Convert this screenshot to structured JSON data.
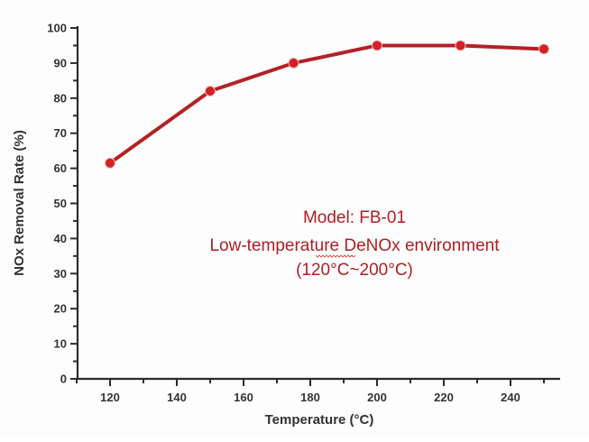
{
  "chart_data": {
    "type": "line",
    "title": "",
    "xlabel": "Temperature (°C)",
    "ylabel": "NOx Removal Rate (%)",
    "xlim": [
      110,
      254
    ],
    "ylim": [
      0,
      100
    ],
    "x_ticks": [
      120,
      140,
      160,
      180,
      200,
      220,
      240
    ],
    "x_minor_ticks": [
      110,
      130,
      150,
      170,
      190,
      210,
      230,
      250
    ],
    "y_ticks": [
      0,
      10,
      20,
      30,
      40,
      50,
      60,
      70,
      80,
      90,
      100
    ],
    "grid": false,
    "legend": null,
    "series": [
      {
        "name": "FB-01",
        "color": "#b22226",
        "marker_color": "#d42027",
        "x": [
          120,
          150,
          175,
          200,
          225,
          250
        ],
        "values": [
          61.5,
          82,
          90,
          95,
          95,
          94
        ]
      }
    ],
    "annotations": [
      "Model: FB-01",
      "Low-temperature DeNOx environment",
      "(120°C~200°C)"
    ]
  },
  "labels": {
    "xlabel": "Temperature (°C)",
    "ylabel": "NOx Removal Rate (%)",
    "annotation_model": "Model: FB-01",
    "annotation_env_prefix": "Low-temperature ",
    "annotation_env_underlined": "DeNOx",
    "annotation_env_suffix": " environment",
    "annotation_range": "(120°C~200°C)"
  },
  "colors": {
    "line": "#b22226",
    "marker": "#d42027",
    "annotation": "#b01e23",
    "axis": "#2b2b2b",
    "tick_text": "#333333"
  }
}
